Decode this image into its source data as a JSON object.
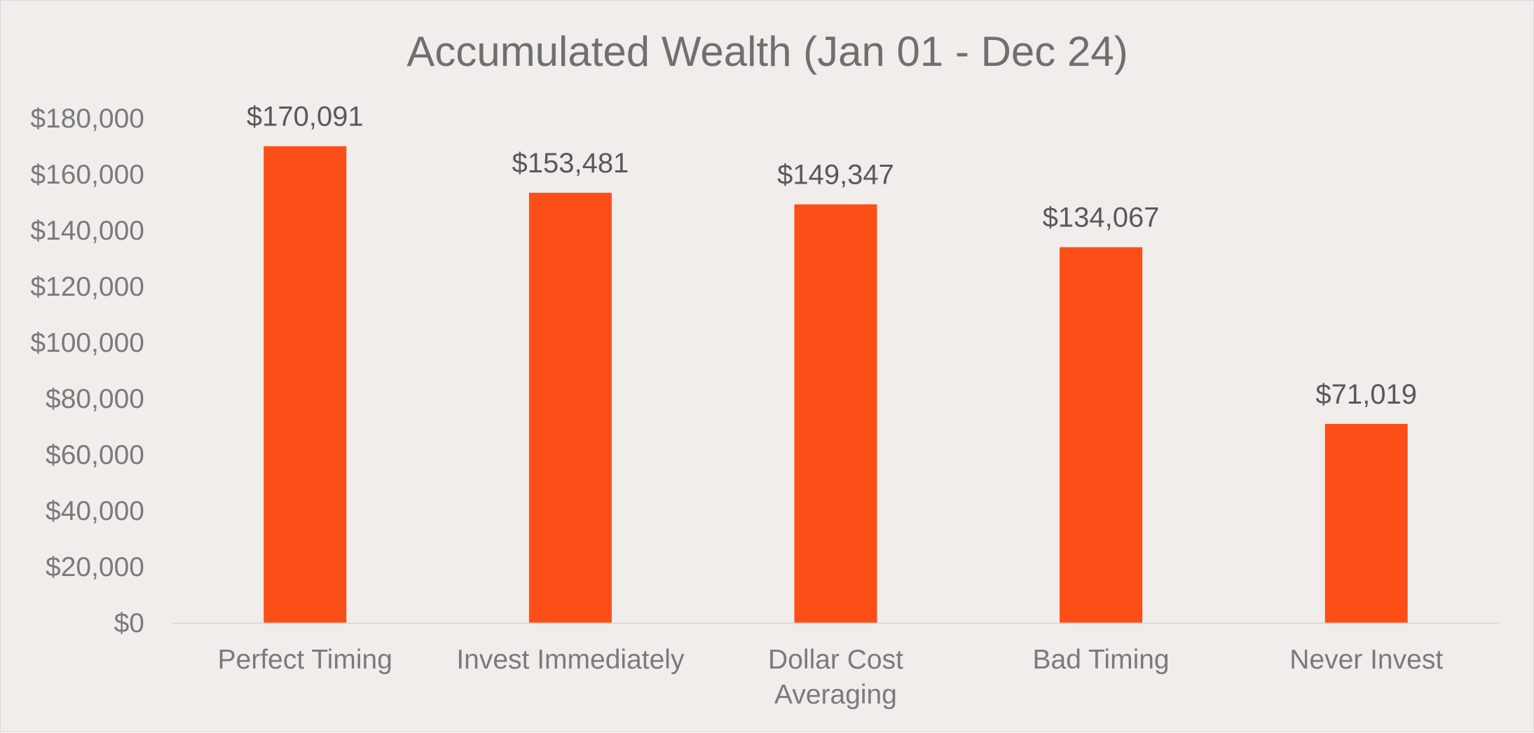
{
  "chart_data": {
    "type": "bar",
    "title": "Accumulated Wealth (Jan 01 - Dec 24)",
    "categories": [
      "Perfect Timing",
      "Invest Immediately",
      "Dollar Cost Averaging",
      "Bad Timing",
      "Never Invest"
    ],
    "category_lines": [
      [
        "Perfect Timing"
      ],
      [
        "Invest Immediately"
      ],
      [
        "Dollar Cost",
        "Averaging"
      ],
      [
        "Bad Timing"
      ],
      [
        "Never Invest"
      ]
    ],
    "values": [
      170091,
      153481,
      149347,
      134067,
      71019
    ],
    "data_labels": [
      "$170,091",
      "$153,481",
      "$149,347",
      "$134,067",
      "$71,019"
    ],
    "yticks": [
      0,
      20000,
      40000,
      60000,
      80000,
      100000,
      120000,
      140000,
      160000,
      180000
    ],
    "ytick_labels": [
      "$0",
      "$20,000",
      "$40,000",
      "$60,000",
      "$80,000",
      "$100,000",
      "$120,000",
      "$140,000",
      "$160,000",
      "$180,000"
    ],
    "ylim": [
      0,
      180000
    ],
    "xlabel": "",
    "ylabel": "",
    "grid": false,
    "legend": "none",
    "colors": {
      "bar": "#fc4f17",
      "background": "#f1edea",
      "axis_line": "#d9d9d9",
      "text": "#7a7a7a"
    }
  }
}
